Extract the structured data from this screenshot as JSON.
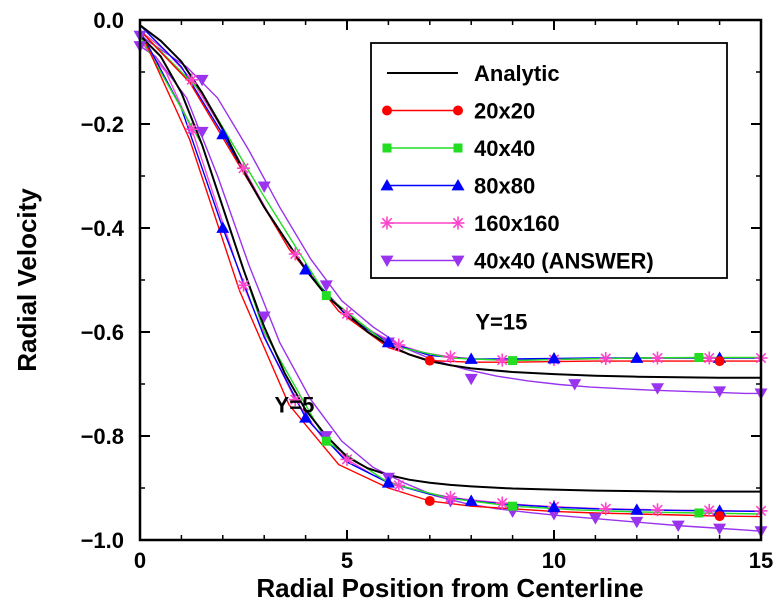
{
  "chart_data": {
    "type": "line",
    "title": "",
    "xlabel": "Radial Position from Centerline",
    "ylabel": "Radial Velocity",
    "xlim": [
      0,
      15
    ],
    "ylim": [
      -1.0,
      0.0
    ],
    "xticks": [
      0,
      5,
      10,
      15
    ],
    "xtick_labels": [
      "0",
      "5",
      "10",
      "15"
    ],
    "yticks": [
      0.0,
      -0.2,
      -0.4,
      -0.6,
      -0.8,
      -1.0
    ],
    "ytick_labels": [
      "0.0",
      "−0.2",
      "−0.4",
      "−0.6",
      "−0.8",
      "−1.0"
    ],
    "grid": false,
    "legend_position": "top-right",
    "annotations": [
      {
        "text": "Y=15",
        "x": 8.1,
        "y": -0.595
      },
      {
        "text": "Y=5",
        "x": 3.25,
        "y": -0.755
      }
    ],
    "series": [
      {
        "name": "Analytic",
        "color": "#000000",
        "marker": "none",
        "groups": [
          {
            "label": "Y=5",
            "x": [
              0,
              0.5,
              1,
              1.5,
              2,
              2.5,
              3,
              3.5,
              4,
              4.5,
              5,
              5.5,
              6,
              6.5,
              7,
              7.5,
              8,
              9,
              10,
              11,
              12,
              13,
              14,
              15
            ],
            "y": [
              -0.03,
              -0.07,
              -0.14,
              -0.24,
              -0.36,
              -0.48,
              -0.59,
              -0.68,
              -0.75,
              -0.8,
              -0.84,
              -0.862,
              -0.875,
              -0.884,
              -0.89,
              -0.894,
              -0.897,
              -0.901,
              -0.903,
              -0.905,
              -0.906,
              -0.907,
              -0.907,
              -0.907
            ]
          },
          {
            "label": "Y=15",
            "x": [
              0,
              0.5,
              1,
              1.5,
              2,
              2.5,
              3,
              3.5,
              4,
              4.5,
              5,
              5.5,
              6,
              6.5,
              7,
              7.5,
              8,
              9,
              10,
              11,
              12,
              13,
              14,
              15
            ],
            "y": [
              -0.01,
              -0.04,
              -0.08,
              -0.14,
              -0.21,
              -0.29,
              -0.36,
              -0.42,
              -0.48,
              -0.53,
              -0.565,
              -0.6,
              -0.625,
              -0.643,
              -0.656,
              -0.664,
              -0.67,
              -0.677,
              -0.681,
              -0.684,
              -0.686,
              -0.687,
              -0.688,
              -0.688
            ]
          }
        ]
      },
      {
        "name": "20x20",
        "color": "#ff0000",
        "marker": "circle",
        "groups": [
          {
            "label": "Y=5",
            "x": [
              0,
              1.2,
              2.4,
              3.6,
              4.8,
              6,
              7,
              8,
              9,
              10,
              11,
              12,
              13,
              14,
              15
            ],
            "y": [
              -0.02,
              -0.23,
              -0.52,
              -0.74,
              -0.855,
              -0.9,
              -0.925,
              -0.935,
              -0.94,
              -0.945,
              -0.948,
              -0.95,
              -0.952,
              -0.954,
              -0.955
            ]
          },
          {
            "label": "Y=15",
            "x": [
              0,
              1.2,
              2.4,
              3.6,
              4.8,
              6,
              7,
              8,
              9,
              10,
              11,
              12,
              13,
              14,
              15
            ],
            "y": [
              -0.02,
              -0.12,
              -0.28,
              -0.44,
              -0.56,
              -0.63,
              -0.655,
              -0.658,
              -0.658,
              -0.657,
              -0.656,
              -0.656,
              -0.656,
              -0.656,
              -0.656
            ]
          }
        ],
        "marker_points": [
          [
            7,
            -0.925
          ],
          [
            14,
            -0.954
          ],
          [
            7,
            -0.655
          ],
          [
            14,
            -0.656
          ]
        ]
      },
      {
        "name": "40x40",
        "color": "#22dd22",
        "marker": "square",
        "groups": [
          {
            "label": "Y=5",
            "x": [
              0,
              1.5,
              3,
              4.5,
              6,
              7.5,
              9,
              10.5,
              12,
              13.5,
              15
            ],
            "y": [
              -0.03,
              -0.24,
              -0.6,
              -0.81,
              -0.89,
              -0.92,
              -0.935,
              -0.942,
              -0.946,
              -0.948,
              -0.95
            ]
          },
          {
            "label": "Y=15",
            "x": [
              0,
              1.5,
              3,
              4.5,
              6,
              7.5,
              9,
              10.5,
              12,
              13.5,
              15
            ],
            "y": [
              -0.02,
              -0.14,
              -0.34,
              -0.53,
              -0.625,
              -0.65,
              -0.655,
              -0.652,
              -0.65,
              -0.649,
              -0.649
            ]
          }
        ],
        "marker_points": [
          [
            4.5,
            -0.81
          ],
          [
            9,
            -0.935
          ],
          [
            13.5,
            -0.948
          ],
          [
            4.5,
            -0.53
          ],
          [
            9,
            -0.655
          ],
          [
            13.5,
            -0.649
          ]
        ]
      },
      {
        "name": "80x80",
        "color": "#0000ff",
        "marker": "triangle-up",
        "groups": [
          {
            "label": "Y=5",
            "x": [
              0,
              1,
              2,
              3,
              4,
              5,
              6,
              7,
              8,
              9,
              10,
              11,
              12,
              13,
              14,
              15
            ],
            "y": [
              -0.02,
              -0.17,
              -0.4,
              -0.61,
              -0.765,
              -0.85,
              -0.89,
              -0.912,
              -0.925,
              -0.932,
              -0.937,
              -0.94,
              -0.942,
              -0.943,
              -0.944,
              -0.945
            ]
          },
          {
            "label": "Y=15",
            "x": [
              0,
              1,
              2,
              3,
              4,
              5,
              6,
              7,
              8,
              9,
              10,
              11,
              12,
              13,
              14,
              15
            ],
            "y": [
              -0.01,
              -0.09,
              -0.22,
              -0.36,
              -0.48,
              -0.57,
              -0.62,
              -0.645,
              -0.652,
              -0.652,
              -0.651,
              -0.65,
              -0.65,
              -0.65,
              -0.65,
              -0.65
            ]
          }
        ],
        "marker_points": [
          [
            2,
            -0.4
          ],
          [
            4,
            -0.765
          ],
          [
            6,
            -0.89
          ],
          [
            8,
            -0.925
          ],
          [
            10,
            -0.937
          ],
          [
            12,
            -0.942
          ],
          [
            14,
            -0.944
          ],
          [
            2,
            -0.22
          ],
          [
            4,
            -0.48
          ],
          [
            6,
            -0.62
          ],
          [
            8,
            -0.652
          ],
          [
            10,
            -0.651
          ],
          [
            12,
            -0.65
          ],
          [
            14,
            -0.65
          ]
        ]
      },
      {
        "name": "160x160",
        "color": "#ff44cc",
        "marker": "asterisk",
        "groups": [
          {
            "label": "Y=5",
            "x": [
              0,
              0.625,
              1.25,
              1.875,
              2.5,
              3.125,
              3.75,
              4.375,
              5,
              5.625,
              6.25,
              6.875,
              7.5,
              8.125,
              8.75,
              9.375,
              10,
              10.625,
              11.25,
              11.875,
              12.5,
              13.125,
              13.75,
              14.375,
              15
            ],
            "y": [
              -0.04,
              -0.1,
              -0.21,
              -0.36,
              -0.51,
              -0.63,
              -0.73,
              -0.8,
              -0.845,
              -0.875,
              -0.895,
              -0.908,
              -0.918,
              -0.924,
              -0.929,
              -0.933,
              -0.936,
              -0.938,
              -0.94,
              -0.941,
              -0.942,
              -0.943,
              -0.943,
              -0.944,
              -0.944
            ]
          },
          {
            "label": "Y=15",
            "x": [
              0,
              0.625,
              1.25,
              1.875,
              2.5,
              3.125,
              3.75,
              4.375,
              5,
              5.625,
              6.25,
              6.875,
              7.5,
              8.125,
              8.75,
              9.375,
              10,
              10.625,
              11.25,
              11.875,
              12.5,
              13.125,
              13.75,
              14.375,
              15
            ],
            "y": [
              -0.02,
              -0.06,
              -0.115,
              -0.195,
              -0.285,
              -0.375,
              -0.45,
              -0.515,
              -0.565,
              -0.6,
              -0.625,
              -0.64,
              -0.648,
              -0.652,
              -0.654,
              -0.654,
              -0.653,
              -0.652,
              -0.651,
              -0.65,
              -0.65,
              -0.65,
              -0.65,
              -0.65,
              -0.65
            ]
          }
        ],
        "marker_points": [
          [
            1.25,
            -0.21
          ],
          [
            2.5,
            -0.51
          ],
          [
            3.75,
            -0.73
          ],
          [
            5,
            -0.845
          ],
          [
            6.25,
            -0.895
          ],
          [
            7.5,
            -0.918
          ],
          [
            8.75,
            -0.929
          ],
          [
            10,
            -0.936
          ],
          [
            11.25,
            -0.94
          ],
          [
            12.5,
            -0.942
          ],
          [
            13.75,
            -0.943
          ],
          [
            15,
            -0.944
          ],
          [
            1.25,
            -0.115
          ],
          [
            2.5,
            -0.285
          ],
          [
            3.75,
            -0.45
          ],
          [
            5,
            -0.565
          ],
          [
            6.25,
            -0.625
          ],
          [
            7.5,
            -0.648
          ],
          [
            8.75,
            -0.654
          ],
          [
            10,
            -0.653
          ],
          [
            11.25,
            -0.651
          ],
          [
            12.5,
            -0.65
          ],
          [
            13.75,
            -0.65
          ],
          [
            15,
            -0.65
          ]
        ]
      },
      {
        "name": "40x40 (ANSWER)",
        "color": "#9933ee",
        "marker": "triangle-down",
        "groups": [
          {
            "label": "Y=5",
            "x": [
              0,
              0.375,
              1.125,
              1.875,
              2.625,
              3.375,
              4.125,
              4.875,
              5.625,
              6.375,
              7.125,
              7.875,
              8.625,
              9.375,
              10.125,
              10.875,
              11.625,
              12.375,
              13.125,
              13.875,
              14.625,
              15
            ],
            "y": [
              -0.05,
              -0.07,
              -0.15,
              -0.3,
              -0.47,
              -0.62,
              -0.73,
              -0.81,
              -0.86,
              -0.89,
              -0.915,
              -0.93,
              -0.94,
              -0.947,
              -0.953,
              -0.958,
              -0.963,
              -0.968,
              -0.973,
              -0.977,
              -0.981,
              -0.983
            ]
          },
          {
            "label": "Y=15",
            "x": [
              0,
              0.375,
              1.125,
              1.875,
              2.625,
              3.375,
              4.125,
              4.875,
              5.625,
              6.375,
              7.125,
              7.875,
              8.625,
              9.375,
              10.125,
              10.875,
              11.625,
              12.375,
              13.125,
              13.875,
              14.625,
              15
            ],
            "y": [
              -0.03,
              -0.05,
              -0.09,
              -0.15,
              -0.25,
              -0.36,
              -0.46,
              -0.54,
              -0.59,
              -0.63,
              -0.655,
              -0.672,
              -0.685,
              -0.694,
              -0.701,
              -0.706,
              -0.709,
              -0.712,
              -0.714,
              -0.716,
              -0.718,
              -0.718
            ]
          }
        ],
        "marker_points": [
          [
            0,
            -0.05
          ],
          [
            0,
            -0.03
          ],
          [
            1.5,
            -0.215
          ],
          [
            1.5,
            -0.115
          ],
          [
            3,
            -0.57
          ],
          [
            3,
            -0.32
          ],
          [
            4.5,
            -0.8
          ],
          [
            4.5,
            -0.51
          ],
          [
            6,
            -0.88
          ],
          [
            6,
            -0.62
          ],
          [
            7.5,
            -0.925
          ],
          [
            8,
            -0.69
          ],
          [
            9,
            -0.945
          ],
          [
            10,
            -0.95
          ],
          [
            11,
            -0.958
          ],
          [
            10.5,
            -0.7
          ],
          [
            12,
            -0.965
          ],
          [
            12.5,
            -0.708
          ],
          [
            13,
            -0.972
          ],
          [
            14,
            -0.978
          ],
          [
            14,
            -0.714
          ],
          [
            15,
            -0.983
          ],
          [
            15,
            -0.718
          ]
        ]
      }
    ]
  }
}
